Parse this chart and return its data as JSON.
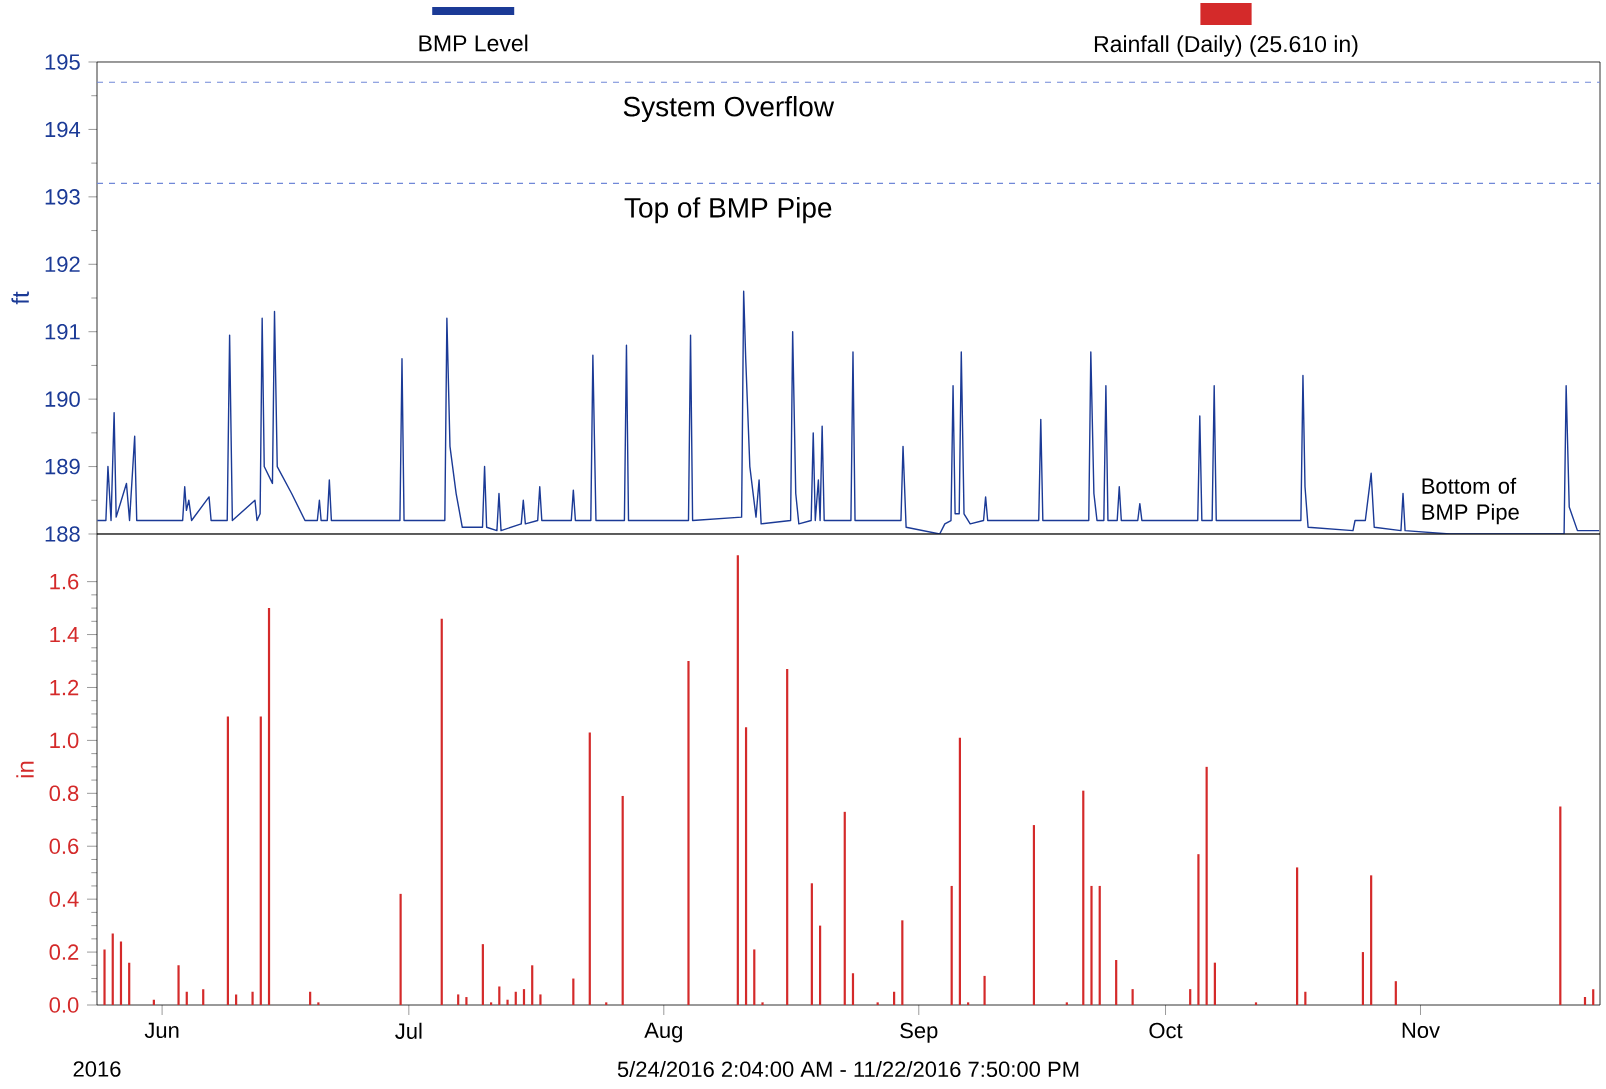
{
  "chart_data": [
    {
      "type": "line",
      "ylabel": "ft",
      "xlim": [
        "2016-05-24T02:04",
        "2016-11-22T19:50"
      ],
      "ylim": [
        188,
        195
      ],
      "yticks": [
        188,
        189,
        190,
        191,
        192,
        193,
        194,
        195
      ],
      "tick_labels": "y",
      "legend": "top",
      "ref_lines": [
        {
          "axis": "y",
          "value": 194.7,
          "label": "System Overflow",
          "color": "#7088d8",
          "line_style": "dashed"
        },
        {
          "axis": "y",
          "value": 193.2,
          "label": "Top of BMP Pipe",
          "color": "#7088d8",
          "line_style": "dashed"
        }
      ],
      "annotations": [
        "Bottom of BMP Pipe"
      ],
      "series": [
        {
          "name": "BMP Level",
          "color": "#1b3a96",
          "x": [
            "2016-05-24T03:00",
            "2016-05-25T04:00",
            "2016-05-25T10:00",
            "2016-05-25T19:00",
            "2016-05-26T04:00",
            "2016-05-26T10:00",
            "2016-05-27T16:00",
            "2016-05-28T01:00",
            "2016-05-28T16:00",
            "2016-05-28T22:00",
            "2016-06-03T12:00",
            "2016-06-03T18:00",
            "2016-06-03T23:00",
            "2016-06-04T06:00",
            "2016-06-04T14:00",
            "2016-06-06T17:00",
            "2016-06-06T23:00",
            "2016-06-08T22:00",
            "2016-06-09T05:00",
            "2016-06-09T13:00",
            "2016-06-12T07:00",
            "2016-06-12T13:00",
            "2016-06-12T22:00",
            "2016-06-13T04:00",
            "2016-06-13T10:00",
            "2016-06-14T10:00",
            "2016-06-14T16:00",
            "2016-06-15T00:00",
            "2016-06-16T18:00",
            "2016-06-18T09:00",
            "2016-06-19T21:00",
            "2016-06-20T03:00",
            "2016-06-20T08:00",
            "2016-06-21T02:00",
            "2016-06-21T08:00",
            "2016-06-21T14:00",
            "2016-06-29T22:00",
            "2016-06-30T04:00",
            "2016-06-30T10:00",
            "2016-07-05T09:00",
            "2016-07-05T15:00",
            "2016-07-06T00:00",
            "2016-07-06T18:00",
            "2016-07-07T12:00",
            "2016-07-09T23:00",
            "2016-07-10T05:00",
            "2016-07-10T11:00",
            "2016-07-11T17:00",
            "2016-07-11T23:00",
            "2016-07-12T05:00",
            "2016-07-14T16:00",
            "2016-07-14T22:00",
            "2016-07-15T04:00",
            "2016-07-16T16:00",
            "2016-07-16T22:00",
            "2016-07-17T04:00",
            "2016-07-20T18:00",
            "2016-07-21T00:00",
            "2016-07-21T06:00",
            "2016-07-23T03:00",
            "2016-07-23T09:00",
            "2016-07-23T18:00",
            "2016-07-27T05:00",
            "2016-07-27T11:00",
            "2016-07-27T17:00",
            "2016-08-04T00:00",
            "2016-08-04T06:00",
            "2016-08-04T12:00",
            "2016-08-10T11:00",
            "2016-08-10T17:00",
            "2016-08-10T23:00",
            "2016-08-11T11:00",
            "2016-08-12T05:00",
            "2016-08-12T14:00",
            "2016-08-12T20:00",
            "2016-08-16T10:00",
            "2016-08-16T16:00",
            "2016-08-17T01:00",
            "2016-08-17T10:00",
            "2016-08-18T22:00",
            "2016-08-19T04:00",
            "2016-08-19T10:00",
            "2016-08-19T19:00",
            "2016-08-20T00:00",
            "2016-08-20T06:00",
            "2016-08-20T12:00",
            "2016-08-23T18:00",
            "2016-08-24T00:00",
            "2016-08-24T06:00",
            "2016-08-29T20:00",
            "2016-08-30T02:00",
            "2016-08-30T11:00",
            "2016-09-03T13:00",
            "2016-09-04T04:00",
            "2016-09-04T22:00",
            "2016-09-05T04:00",
            "2016-09-05T10:00",
            "2016-09-05T22:00",
            "2016-09-06T04:00",
            "2016-09-06T12:00",
            "2016-09-07T06:00",
            "2016-09-08T21:00",
            "2016-09-09T03:00",
            "2016-09-09T09:00",
            "2016-09-15T14:00",
            "2016-09-15T20:00",
            "2016-09-16T02:00",
            "2016-09-21T16:00",
            "2016-09-21T22:00",
            "2016-09-22T07:00",
            "2016-09-22T16:00",
            "2016-09-23T12:00",
            "2016-09-23T18:00",
            "2016-09-24T00:00",
            "2016-09-25T03:00",
            "2016-09-25T09:00",
            "2016-09-25T15:00",
            "2016-09-27T15:00",
            "2016-09-27T21:00",
            "2016-09-28T03:00",
            "2016-10-04T22:00",
            "2016-10-05T04:00",
            "2016-10-05T10:00",
            "2016-10-06T16:00",
            "2016-10-06T22:00",
            "2016-10-07T04:00",
            "2016-10-17T11:00",
            "2016-10-17T17:00",
            "2016-10-17T23:00",
            "2016-10-18T08:00",
            "2016-10-23T19:00",
            "2016-10-24T01:00",
            "2016-10-25T07:00",
            "2016-10-26T00:00",
            "2016-10-26T09:00",
            "2016-10-29T15:00",
            "2016-10-29T21:00",
            "2016-10-30T03:00",
            "2016-11-04T14:00",
            "2016-11-18T11:00",
            "2016-11-18T17:00",
            "2016-11-19T02:00",
            "2016-11-20T02:00",
            "2016-11-22T17:00"
          ],
          "values": [
            188.2,
            188.2,
            189.0,
            188.2,
            189.8,
            188.25,
            188.75,
            188.2,
            189.45,
            188.2,
            188.2,
            188.7,
            188.35,
            188.5,
            188.2,
            188.55,
            188.2,
            188.2,
            190.95,
            188.2,
            188.5,
            188.2,
            188.3,
            191.2,
            189.0,
            188.75,
            191.3,
            189.0,
            188.6,
            188.2,
            188.2,
            188.5,
            188.2,
            188.2,
            188.8,
            188.2,
            188.2,
            190.6,
            188.2,
            188.2,
            191.2,
            189.3,
            188.6,
            188.1,
            188.1,
            189.0,
            188.1,
            188.05,
            188.6,
            188.05,
            188.15,
            188.5,
            188.15,
            188.2,
            188.7,
            188.2,
            188.2,
            188.65,
            188.2,
            188.2,
            190.65,
            188.2,
            188.2,
            190.8,
            188.2,
            188.2,
            190.95,
            188.2,
            188.25,
            191.6,
            190.6,
            189.0,
            188.25,
            188.8,
            188.15,
            188.2,
            191.0,
            188.6,
            188.15,
            188.2,
            189.5,
            188.2,
            188.8,
            188.2,
            189.6,
            188.2,
            188.2,
            190.7,
            188.2,
            188.2,
            189.3,
            188.1,
            188.0,
            188.15,
            188.2,
            190.2,
            188.3,
            188.3,
            190.7,
            188.3,
            188.15,
            188.2,
            188.55,
            188.2,
            188.2,
            189.7,
            188.2,
            188.2,
            190.7,
            188.6,
            188.2,
            188.2,
            190.2,
            188.2,
            188.2,
            188.7,
            188.2,
            188.2,
            188.45,
            188.2,
            188.2,
            189.75,
            188.2,
            188.2,
            190.2,
            188.2,
            188.2,
            190.35,
            188.7,
            188.1,
            188.05,
            188.2,
            188.2,
            188.9,
            188.1,
            188.05,
            188.6,
            188.05,
            188.0,
            188.0,
            190.2,
            188.4,
            188.05,
            188.05
          ]
        }
      ]
    },
    {
      "type": "bar",
      "xlabel": "5/24/2016 2:04:00 AM - 11/22/2016 7:50:00 PM",
      "ylabel": "in",
      "xlim": [
        "2016-05-24T02:04",
        "2016-11-22T19:50"
      ],
      "ylim": [
        0,
        1.78
      ],
      "yticks": [
        {
          "value": 0,
          "label": "0.0"
        },
        0.2,
        0.4,
        0.6,
        0.8,
        {
          "value": 1,
          "label": "1.0"
        },
        1.2,
        1.4,
        1.6
      ],
      "xticks": [
        {
          "value": "2016-06-01",
          "label": "Jun"
        },
        {
          "value": "2016-07-01",
          "label": "Jul"
        },
        {
          "value": "2016-08-01",
          "label": "Aug"
        },
        {
          "value": "2016-09-01",
          "label": "Sep"
        },
        {
          "value": "2016-10-01",
          "label": "Oct"
        },
        {
          "value": "2016-11-01",
          "label": "Nov"
        }
      ],
      "legend": "top",
      "annotations": [
        "2016"
      ],
      "series": [
        {
          "name": "Rainfall (Daily) (25.610 in)",
          "color": "#d42a2a",
          "x": [
            "2016-05-25",
            "2016-05-26",
            "2016-05-27",
            "2016-05-28",
            "2016-05-31",
            "2016-06-03",
            "2016-06-04",
            "2016-06-06",
            "2016-06-09",
            "2016-06-10",
            "2016-06-12",
            "2016-06-13",
            "2016-06-14",
            "2016-06-19",
            "2016-06-20",
            "2016-06-30",
            "2016-07-05",
            "2016-07-07",
            "2016-07-08",
            "2016-07-10",
            "2016-07-11",
            "2016-07-12",
            "2016-07-13",
            "2016-07-14",
            "2016-07-15",
            "2016-07-16",
            "2016-07-17",
            "2016-07-21",
            "2016-07-23",
            "2016-07-25",
            "2016-07-27",
            "2016-08-04",
            "2016-08-10",
            "2016-08-11",
            "2016-08-12",
            "2016-08-13",
            "2016-08-16",
            "2016-08-19",
            "2016-08-20",
            "2016-08-23",
            "2016-08-24",
            "2016-08-27",
            "2016-08-29",
            "2016-08-30",
            "2016-09-05",
            "2016-09-06",
            "2016-09-07",
            "2016-09-09",
            "2016-09-15",
            "2016-09-19",
            "2016-09-21",
            "2016-09-22",
            "2016-09-23",
            "2016-09-25",
            "2016-09-27",
            "2016-10-04",
            "2016-10-05",
            "2016-10-06",
            "2016-10-07",
            "2016-10-12",
            "2016-10-17",
            "2016-10-18",
            "2016-10-25",
            "2016-10-26",
            "2016-10-29",
            "2016-11-18",
            "2016-11-21",
            "2016-11-22"
          ],
          "values": [
            0.21,
            0.27,
            0.24,
            0.16,
            0.02,
            0.15,
            0.05,
            0.06,
            1.09,
            0.04,
            0.05,
            1.09,
            1.5,
            0.05,
            0.01,
            0.42,
            1.46,
            0.04,
            0.03,
            0.23,
            0.01,
            0.07,
            0.02,
            0.05,
            0.06,
            0.15,
            0.04,
            0.1,
            1.03,
            0.01,
            0.79,
            1.3,
            1.7,
            1.05,
            0.21,
            0.01,
            1.27,
            0.46,
            0.3,
            0.73,
            0.12,
            0.01,
            0.05,
            0.32,
            0.45,
            1.01,
            0.01,
            0.11,
            0.68,
            0.01,
            0.81,
            0.45,
            0.45,
            0.17,
            0.06,
            0.06,
            0.57,
            0.9,
            0.16,
            0.01,
            0.52,
            0.05,
            0.2,
            0.49,
            0.09,
            0.75,
            0.03,
            0.06
          ]
        }
      ]
    }
  ]
}
